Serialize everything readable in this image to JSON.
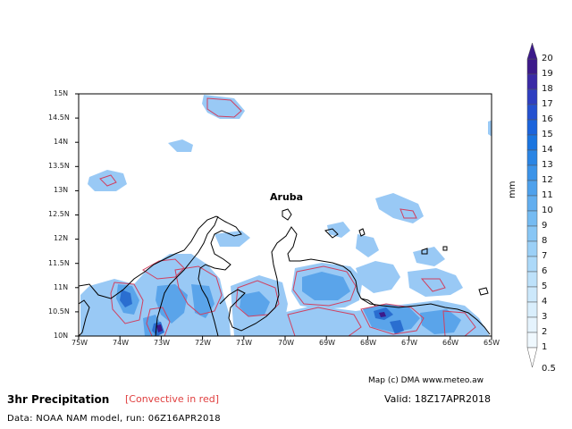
{
  "map": {
    "place_label": "Aruba",
    "lat_labels": [
      "15N",
      "14.5N",
      "14N",
      "13.5N",
      "13N",
      "12.5N",
      "12N",
      "11.5N",
      "11N",
      "10.5N",
      "10N"
    ],
    "lon_labels": [
      "75W",
      "74W",
      "73W",
      "72W",
      "71W",
      "70W",
      "69W",
      "68W",
      "67W",
      "66W",
      "65W"
    ],
    "precip_color": "#99c9f5",
    "precip_color_medium": "#5aa4ea",
    "precip_color_heavy": "#2a6ed0",
    "convective_color": "#d04060"
  },
  "scale": {
    "unit": "mm",
    "levels": [
      "20",
      "19",
      "18",
      "17",
      "16",
      "15",
      "14",
      "13",
      "12",
      "11",
      "10",
      "9",
      "8",
      "7",
      "6",
      "5",
      "4",
      "3",
      "2",
      "1",
      "0.5"
    ],
    "colors": [
      "#3c1a8a",
      "#3a2aa6",
      "#2e3ec0",
      "#2451d0",
      "#1b64dc",
      "#1a75e0",
      "#2a85e4",
      "#3b93e8",
      "#4ea1ec",
      "#62aeef",
      "#75bbf2",
      "#88c6f5",
      "#9bd0f7",
      "#acd9f9",
      "#bde1fa",
      "#cce8fb",
      "#d9eefc",
      "#e5f3fd",
      "#eff8fe",
      "#ffffff"
    ]
  },
  "footer": {
    "title": "3hr Precipitation",
    "subtitle": "[Convective in red]",
    "valid": "Valid: 18Z17APR2018",
    "data": "Data: NOAA NAM model, run: 06Z16APR2018",
    "credit": "Map (c) DMA www.meteo.aw"
  }
}
